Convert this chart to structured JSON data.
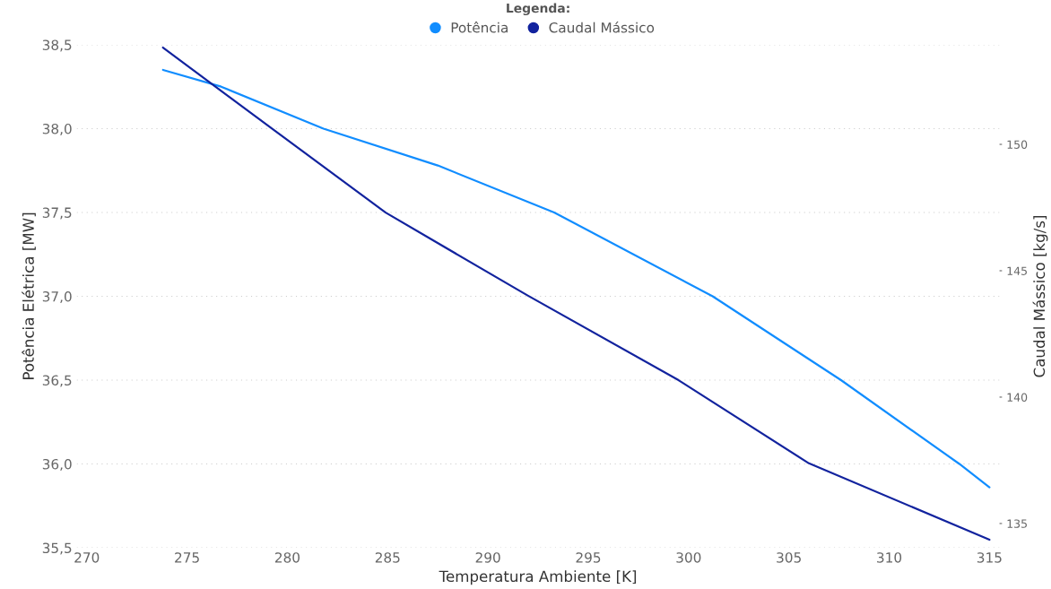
{
  "chart_data": {
    "type": "line",
    "legend_title": "Legenda:",
    "xlabel": "Temperatura Ambiente [K]",
    "ylabel": "Potência Elétrica [MW]",
    "y2label": "Caudal Mássico [kg/s]",
    "series": [
      {
        "name": "Potência",
        "color": "#118dff",
        "x": [
          273.8,
          276.7,
          281.8,
          287.5,
          293.3,
          301.2,
          307.6,
          313.5,
          315.0
        ],
        "values": [
          38.35,
          38.25,
          38.0,
          37.78,
          37.5,
          37.0,
          36.5,
          36.0,
          35.86
        ]
      },
      {
        "name": "Caudal Mássico",
        "color": "#12239e",
        "axis": "y2",
        "x": [
          273.8,
          279.2,
          284.9,
          292.0,
          299.5,
          306.0,
          315.0
        ],
        "values": [
          153.83,
          150.64,
          147.3,
          144.01,
          140.67,
          137.38,
          134.36
        ]
      }
    ],
    "xlim": [
      269.5,
      315.5
    ],
    "xticks": [
      270,
      275,
      280,
      285,
      290,
      295,
      300,
      305,
      310,
      315
    ],
    "ylim": [
      35.5,
      38.5
    ],
    "yticks": [
      {
        "value": 35.5,
        "label": "35,5"
      },
      {
        "value": 36.0,
        "label": "36,0"
      },
      {
        "value": 36.5,
        "label": "36,5"
      },
      {
        "value": 37.0,
        "label": "37,0"
      },
      {
        "value": 37.5,
        "label": "37,5"
      },
      {
        "value": 38.0,
        "label": "38,0"
      },
      {
        "value": 38.5,
        "label": "38,5"
      }
    ],
    "y2lim": [
      134.04,
      153.94
    ],
    "y2ticks": [
      135,
      140,
      145,
      150
    ],
    "grid": "y",
    "legend": "top",
    "marker": "none",
    "line_style": "solid"
  }
}
